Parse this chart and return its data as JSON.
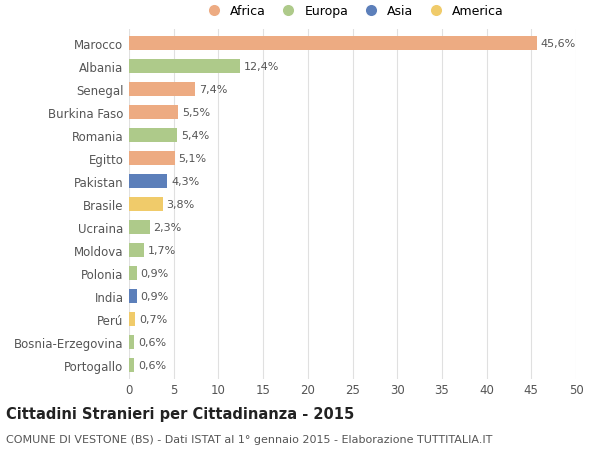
{
  "countries": [
    "Marocco",
    "Albania",
    "Senegal",
    "Burkina Faso",
    "Romania",
    "Egitto",
    "Pakistan",
    "Brasile",
    "Ucraina",
    "Moldova",
    "Polonia",
    "India",
    "Perú",
    "Bosnia-Erzegovina",
    "Portogallo"
  ],
  "values": [
    45.6,
    12.4,
    7.4,
    5.5,
    5.4,
    5.1,
    4.3,
    3.8,
    2.3,
    1.7,
    0.9,
    0.9,
    0.7,
    0.6,
    0.6
  ],
  "labels": [
    "45,6%",
    "12,4%",
    "7,4%",
    "5,5%",
    "5,4%",
    "5,1%",
    "4,3%",
    "3,8%",
    "2,3%",
    "1,7%",
    "0,9%",
    "0,9%",
    "0,7%",
    "0,6%",
    "0,6%"
  ],
  "continents": [
    "Africa",
    "Europa",
    "Africa",
    "Africa",
    "Europa",
    "Africa",
    "Asia",
    "America",
    "Europa",
    "Europa",
    "Europa",
    "Asia",
    "America",
    "Europa",
    "Europa"
  ],
  "continent_colors": {
    "Africa": "#EDAB82",
    "Europa": "#AECA8A",
    "Asia": "#5C7FBA",
    "America": "#F0CB6A"
  },
  "legend_order": [
    "Africa",
    "Europa",
    "Asia",
    "America"
  ],
  "title": "Cittadini Stranieri per Cittadinanza - 2015",
  "subtitle": "COMUNE DI VESTONE (BS) - Dati ISTAT al 1° gennaio 2015 - Elaborazione TUTTITALIA.IT",
  "xlim": [
    0,
    50
  ],
  "xticks": [
    0,
    5,
    10,
    15,
    20,
    25,
    30,
    35,
    40,
    45,
    50
  ],
  "background_color": "#ffffff",
  "grid_color": "#e0e0e0",
  "bar_height": 0.6,
  "title_fontsize": 10.5,
  "subtitle_fontsize": 8.0,
  "tick_fontsize": 8.5,
  "label_fontsize": 8.0,
  "legend_fontsize": 9.0
}
